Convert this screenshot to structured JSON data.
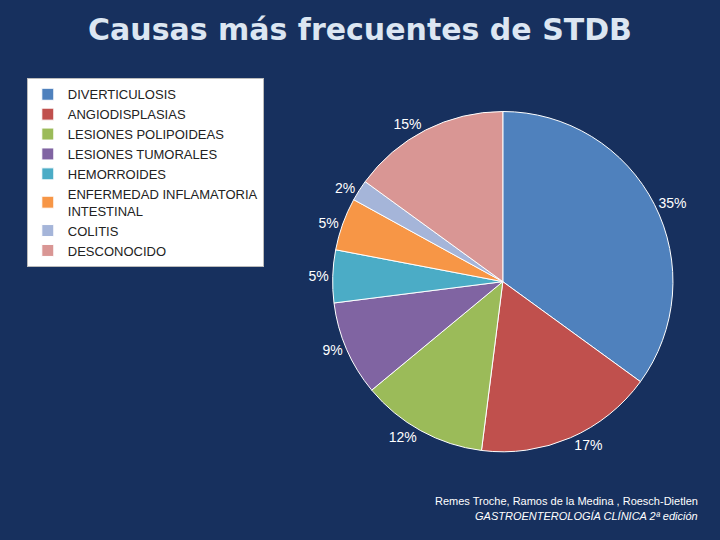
{
  "chart_data": {
    "type": "pie",
    "title": "Causas más frecuentes de STDB",
    "categories": [
      "DIVERTICULOSIS",
      "ANGIODISPLASIAS",
      "LESIONES POLIPOIDEAS",
      "LESIONES TUMORALES",
      "HEMORROIDES",
      "ENFERMEDAD INFLAMATORIA INTESTINAL",
      "COLITIS",
      "DESCONOCIDO"
    ],
    "values": [
      35,
      17,
      12,
      9,
      5,
      5,
      2,
      15
    ],
    "value_labels": [
      "35%",
      "17%",
      "12%",
      "9%",
      "5%",
      "5%",
      "2%",
      "15%"
    ],
    "colors": [
      "#4f81bd",
      "#c0504d",
      "#9bbb59",
      "#8064a2",
      "#4bacc6",
      "#f79646",
      "#a5b5d9",
      "#d99694"
    ],
    "data_labels": true,
    "legend": "left",
    "annotations": [
      "Remes Troche, Ramos de la Medina , Roesch-Dietlen",
      "GASTROENTEROLOGÍA CLÍNICA 2ª edición"
    ]
  }
}
